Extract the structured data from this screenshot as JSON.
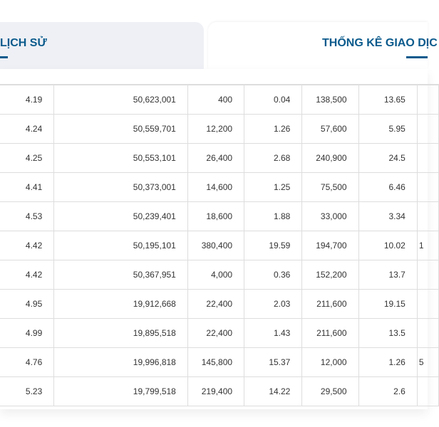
{
  "tabs": {
    "history_label": "LỊCH SỬ",
    "stats_label": "THỐNG KÊ GIAO DỊC"
  },
  "table": {
    "rows": [
      [
        "4.19",
        "50,623,001",
        "400",
        "0.04",
        "138,500",
        "13.65",
        ""
      ],
      [
        "4.24",
        "50,559,701",
        "12,200",
        "1.26",
        "57,600",
        "5.95",
        ""
      ],
      [
        "4.25",
        "50,553,101",
        "26,400",
        "2.68",
        "240,900",
        "24.5",
        ""
      ],
      [
        "4.41",
        "50,373,001",
        "14,600",
        "1.25",
        "75,500",
        "6.46",
        ""
      ],
      [
        "4.53",
        "50,239,401",
        "18,600",
        "1.88",
        "33,000",
        "3.34",
        ""
      ],
      [
        "4.42",
        "50,195,101",
        "380,400",
        "19.59",
        "194,700",
        "10.02",
        "1"
      ],
      [
        "4.42",
        "50,367,951",
        "4,000",
        "0.36",
        "152,200",
        "13.7",
        ""
      ],
      [
        "4.95",
        "19,912,668",
        "22,400",
        "2.03",
        "211,600",
        "19.15",
        ""
      ],
      [
        "4.99",
        "19,895,518",
        "22,400",
        "1.43",
        "211,600",
        "13.5",
        ""
      ],
      [
        "4.76",
        "19,996,818",
        "145,800",
        "15.37",
        "12,000",
        "1.26",
        "5"
      ],
      [
        "5.23",
        "19,799,518",
        "219,400",
        "14.22",
        "29,500",
        "2.6",
        ""
      ]
    ]
  }
}
